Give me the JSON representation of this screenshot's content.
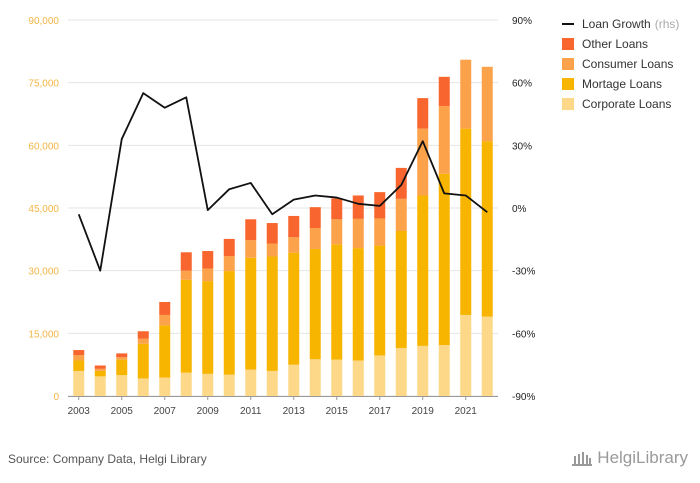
{
  "chart_data": {
    "type": "bar",
    "stacked": true,
    "categories": [
      "2003",
      "2004",
      "2005",
      "2006",
      "2007",
      "2008",
      "2009",
      "2010",
      "2011",
      "2012",
      "2013",
      "2014",
      "2015",
      "2016",
      "2017",
      "2018",
      "2019",
      "2020",
      "2021",
      "2022"
    ],
    "x_tick_labels": [
      "2003",
      "2005",
      "2007",
      "2009",
      "2011",
      "2013",
      "2015",
      "2017",
      "2019",
      "2021"
    ],
    "series": [
      {
        "name": "Corporate Loans",
        "color": "#fdd888",
        "values": [
          6000,
          4700,
          5000,
          4200,
          4400,
          5600,
          5300,
          5100,
          6300,
          6000,
          7500,
          8800,
          8700,
          8500,
          9700,
          11500,
          12000,
          12200,
          19400,
          19000
        ]
      },
      {
        "name": "Mortage Loans",
        "color": "#f7b500",
        "values": [
          2500,
          1300,
          3700,
          8300,
          12500,
          22200,
          22200,
          24800,
          26800,
          27400,
          26800,
          26400,
          27600,
          26900,
          26300,
          28000,
          36000,
          41000,
          44600,
          42000
        ]
      },
      {
        "name": "Consumer Loans",
        "color": "#fba24a",
        "values": [
          1300,
          500,
          600,
          1200,
          2500,
          2200,
          3000,
          3600,
          4200,
          3100,
          3700,
          5000,
          6000,
          7000,
          6500,
          7700,
          16000,
          16200,
          16500,
          17800
        ]
      },
      {
        "name": "Other Loans",
        "color": "#f8652f",
        "values": [
          1200,
          800,
          900,
          1800,
          3100,
          4400,
          4200,
          4100,
          5000,
          4900,
          5100,
          5000,
          5000,
          5600,
          6300,
          7400,
          7300,
          7000,
          0,
          0
        ]
      }
    ],
    "line_series": {
      "name": "Loan Growth",
      "axis": "rhs",
      "color": "#111111",
      "values": [
        -0.03,
        -0.3,
        0.33,
        0.55,
        0.48,
        0.53,
        -0.01,
        0.09,
        0.12,
        -0.03,
        0.04,
        0.06,
        0.05,
        0.02,
        0.01,
        0.11,
        0.32,
        0.07,
        0.06,
        -0.02
      ]
    },
    "ylim": [
      0,
      90000
    ],
    "yticks": [
      0,
      15000,
      30000,
      45000,
      60000,
      75000,
      90000
    ],
    "ytick_labels": [
      "0",
      "15,000",
      "30,000",
      "45,000",
      "60,000",
      "75,000",
      "90,000"
    ],
    "y2lim": [
      -0.9,
      0.9
    ],
    "y2ticks": [
      -0.9,
      -0.6,
      -0.3,
      0,
      0.3,
      0.6,
      0.9
    ],
    "y2tick_labels": [
      "-90%",
      "-60%",
      "-30%",
      "0%",
      "30%",
      "60%",
      "90%"
    ],
    "grid": true,
    "legend_position": "top-right",
    "legend": [
      {
        "label": "Loan Growth",
        "note": "(rhs)",
        "kind": "line",
        "color": "#111111"
      },
      {
        "label": "Other Loans",
        "kind": "box",
        "color": "#f8652f"
      },
      {
        "label": "Consumer Loans",
        "kind": "box",
        "color": "#fba24a"
      },
      {
        "label": "Mortage Loans",
        "kind": "box",
        "color": "#f7b500"
      },
      {
        "label": "Corporate Loans",
        "kind": "box",
        "color": "#fdd888"
      }
    ]
  },
  "footer": {
    "source": "Source: Company Data, Helgi Library",
    "brand": "HelgiLibrary",
    "brand_icon": "library-building-icon"
  }
}
